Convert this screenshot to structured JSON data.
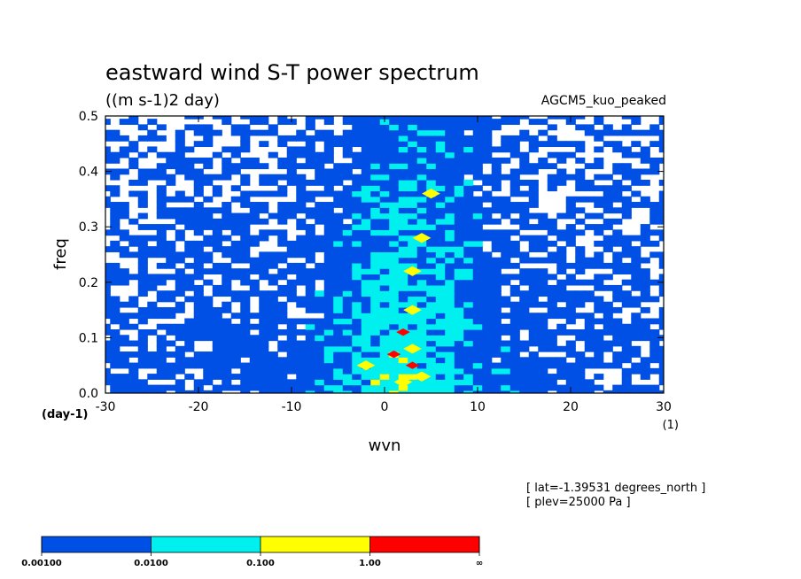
{
  "chart_data": {
    "type": "heatmap",
    "title": "eastward wind S-T power spectrum",
    "subtitle": "((m s-1)2 day)",
    "dataset_label": "AGCM5_kuo_peaked",
    "xlabel": "wvn",
    "ylabel": "freq",
    "x_unit": "(1)",
    "y_unit": "(day-1)",
    "xlim": [
      -30,
      30
    ],
    "ylim": [
      0,
      0.5
    ],
    "x_ticks": [
      "-30",
      "-20",
      "-10",
      "0",
      "10",
      "20",
      "30"
    ],
    "y_ticks": [
      "0.0",
      "0.1",
      "0.2",
      "0.3",
      "0.4",
      "0.5"
    ],
    "grid": false,
    "levels": [
      0.001,
      0.01,
      0.1,
      1.0
    ],
    "colors": [
      "#0050e6",
      "#00f0f0",
      "#ffff00",
      "#ff0000"
    ],
    "colorbar_labels": [
      "0.00100",
      "0.0100",
      "0.100",
      "1.00",
      "∞"
    ],
    "features": [
      {
        "wvn": 1,
        "freq": 0.07,
        "level": 3
      },
      {
        "wvn": 3,
        "freq": 0.05,
        "level": 3
      },
      {
        "wvn": 2,
        "freq": 0.11,
        "level": 3
      },
      {
        "wvn": 2,
        "freq": 0.02,
        "level": 2
      },
      {
        "wvn": 4,
        "freq": 0.03,
        "level": 2
      },
      {
        "wvn": -2,
        "freq": 0.05,
        "level": 2
      },
      {
        "wvn": 3,
        "freq": 0.08,
        "level": 2
      },
      {
        "wvn": 3,
        "freq": 0.15,
        "level": 2
      },
      {
        "wvn": 3,
        "freq": 0.22,
        "level": 2
      },
      {
        "wvn": 4,
        "freq": 0.28,
        "level": 2
      },
      {
        "wvn": 5,
        "freq": 0.36,
        "level": 2
      }
    ]
  },
  "annotations": {
    "lat": "[ lat=-1.39531 degrees_north ]",
    "plev": "[ plev=25000 Pa ]"
  }
}
